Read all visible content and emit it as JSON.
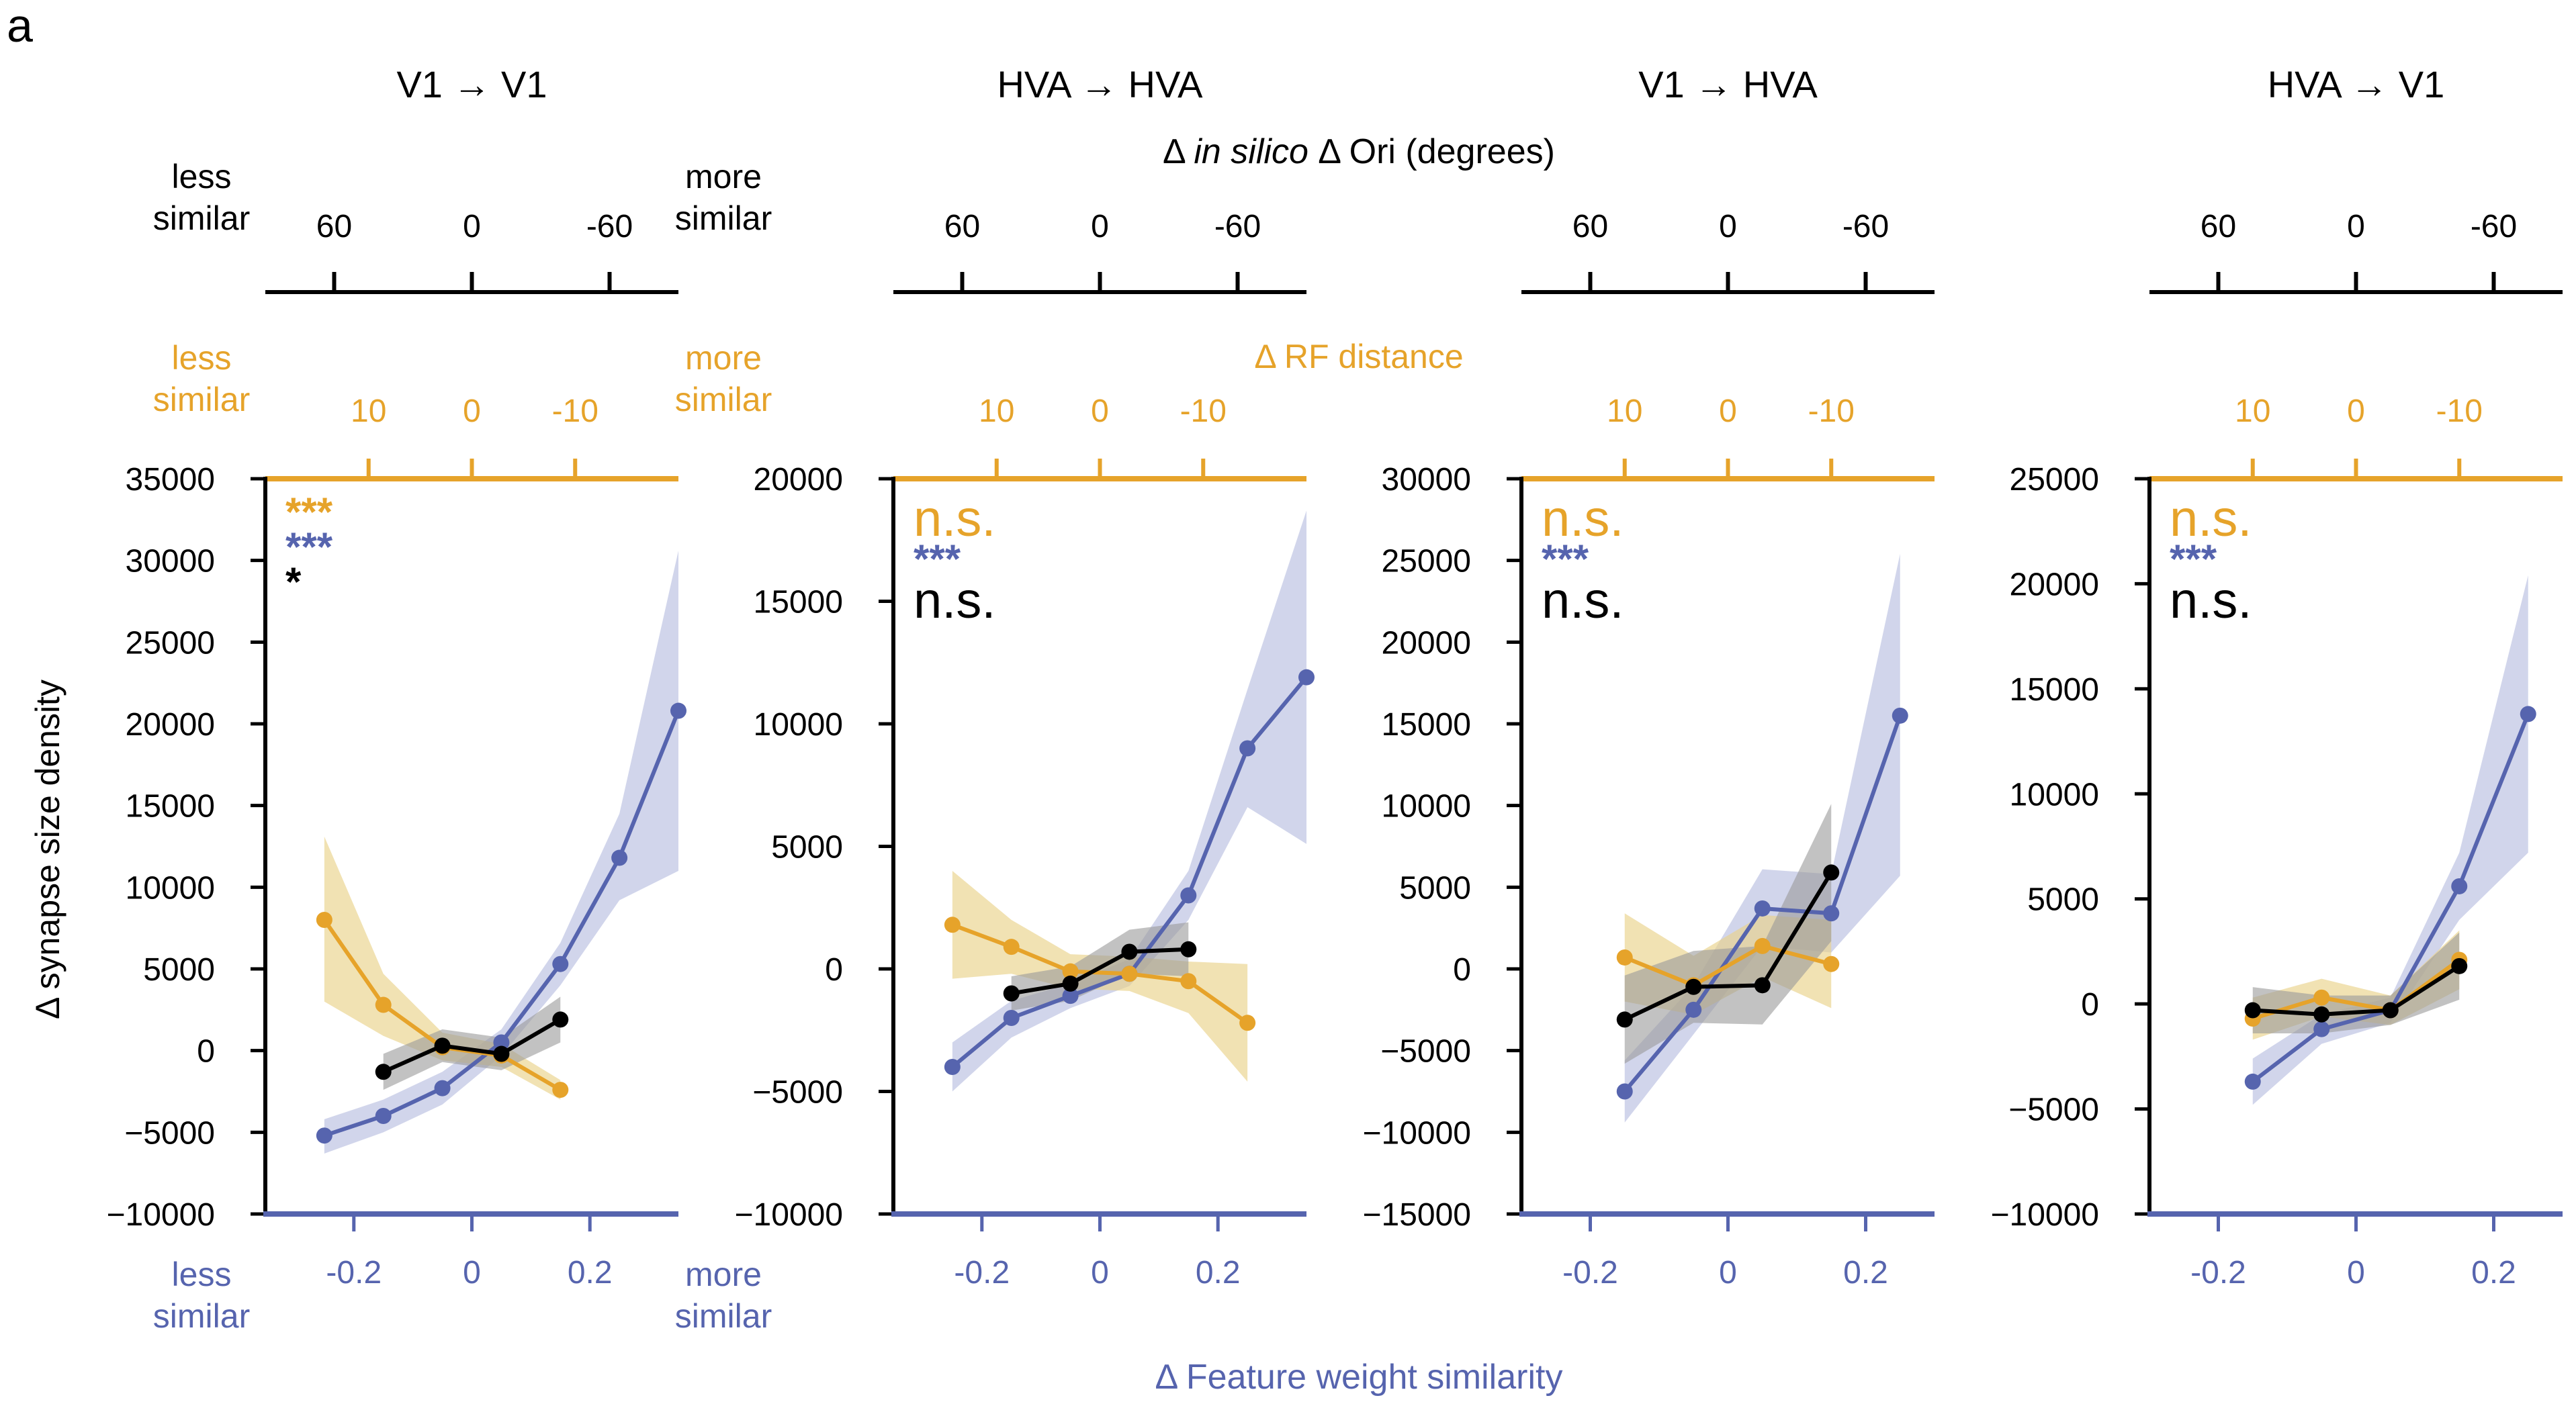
{
  "panel_letter": "a",
  "labels": {
    "top_axis": "Δ in silico Δ Ori (degrees)",
    "top_axis_prefix": "Δ ",
    "top_axis_italic": "in silico",
    "top_axis_suffix": " Δ Ori (degrees)",
    "middle_axis": "Δ RF distance",
    "bottom_axis": "Δ Feature weight similarity",
    "y_axis": "Δ synapse size density",
    "less_similar": [
      "less",
      "similar"
    ],
    "more_similar": [
      "more",
      "similar"
    ]
  },
  "colors": {
    "orange": "#E6A32A",
    "blue": "#5664AE",
    "black": "#000000",
    "orange_band": "#E9D38A",
    "blue_band": "#B9BEE0",
    "gray_band": "#9A9A9A"
  },
  "chart_data": [
    {
      "type": "line",
      "title": "V1 → V1",
      "ylim": [
        -10000,
        35000
      ],
      "yticks": [
        35000,
        30000,
        25000,
        20000,
        15000,
        10000,
        5000,
        0,
        -5000,
        -10000
      ],
      "ytick_labels": [
        "35000",
        "30000",
        "25000",
        "20000",
        "15000",
        "10000",
        "5000",
        "0",
        "−5000",
        "−10000"
      ],
      "xlim": [
        -0.35,
        0.35
      ],
      "xticks": [
        -0.2,
        0,
        0.2
      ],
      "xtick_labels": [
        "-0.2",
        "0",
        "0.2"
      ],
      "ori_ticks": [
        60,
        0,
        -60
      ],
      "ori_tick_labels": [
        "60",
        "0",
        "-60"
      ],
      "ori_lim": [
        -90,
        90
      ],
      "rf_ticks": [
        10,
        0,
        -10
      ],
      "rf_tick_labels": [
        "10",
        "0",
        "-10"
      ],
      "rf_lim": [
        -20,
        20
      ],
      "significance": [
        {
          "series": "Feature weight similarity",
          "label": "***",
          "color": "blue"
        },
        {
          "series": "In silico Δ Ori",
          "label": "*",
          "color": "black"
        },
        {
          "series": "RF distance",
          "label": "***",
          "color": "orange"
        }
      ],
      "series": [
        {
          "name": "Feature weight similarity",
          "color": "blue",
          "x": [
            -0.25,
            -0.15,
            -0.05,
            0.05,
            0.15,
            0.25,
            0.35
          ],
          "y": [
            -5200,
            -4000,
            -2300,
            500,
            5300,
            11800,
            20800
          ],
          "lo": [
            -6300,
            -5000,
            -3300,
            -300,
            4000,
            9200,
            11000
          ],
          "hi": [
            -4200,
            -3000,
            -1300,
            1300,
            6600,
            14500,
            30600
          ]
        },
        {
          "name": "RF distance",
          "color": "orange",
          "x": [
            -0.25,
            -0.15,
            -0.05,
            0.05,
            0.15
          ],
          "y": [
            8000,
            2800,
            200,
            -300,
            -2400
          ],
          "lo": [
            3000,
            900,
            -600,
            -1000,
            -3000
          ],
          "hi": [
            13100,
            4700,
            1100,
            400,
            -1800
          ]
        },
        {
          "name": "In silico Δ Ori",
          "color": "black",
          "x": [
            -0.15,
            -0.05,
            0.05,
            0.15
          ],
          "y": [
            -1300,
            300,
            -200,
            1900
          ],
          "lo": [
            -2400,
            -700,
            -1200,
            500
          ],
          "hi": [
            -200,
            1300,
            800,
            3300
          ]
        }
      ]
    },
    {
      "type": "line",
      "title": "HVA → HVA",
      "ylim": [
        -10000,
        20000
      ],
      "yticks": [
        20000,
        15000,
        10000,
        5000,
        0,
        -5000,
        -10000
      ],
      "ytick_labels": [
        "20000",
        "15000",
        "10000",
        "5000",
        "0",
        "−5000",
        "−10000"
      ],
      "xlim": [
        -0.35,
        0.35
      ],
      "xticks": [
        -0.2,
        0,
        0.2
      ],
      "xtick_labels": [
        "-0.2",
        "0",
        "0.2"
      ],
      "ori_ticks": [
        60,
        0,
        -60
      ],
      "ori_tick_labels": [
        "60",
        "0",
        "-60"
      ],
      "ori_lim": [
        -90,
        90
      ],
      "rf_ticks": [
        10,
        0,
        -10
      ],
      "rf_tick_labels": [
        "10",
        "0",
        "-10"
      ],
      "rf_lim": [
        -20,
        20
      ],
      "significance": [
        {
          "series": "Feature weight similarity",
          "label": "***",
          "color": "blue"
        },
        {
          "series": "In silico Δ Ori",
          "label": "n.s.",
          "color": "black"
        },
        {
          "series": "RF distance",
          "label": "n.s.",
          "color": "orange"
        }
      ],
      "series": [
        {
          "name": "Feature weight similarity",
          "color": "blue",
          "x": [
            -0.25,
            -0.15,
            -0.05,
            0.05,
            0.15,
            0.25,
            0.35
          ],
          "y": [
            -4000,
            -2000,
            -1100,
            -200,
            3000,
            9000,
            11900
          ],
          "lo": [
            -5000,
            -2800,
            -1600,
            -700,
            2000,
            6600,
            5100
          ],
          "hi": [
            -3000,
            -1300,
            -600,
            400,
            4000,
            11400,
            18700
          ]
        },
        {
          "name": "RF distance",
          "color": "orange",
          "x": [
            -0.25,
            -0.15,
            -0.05,
            0.05,
            0.15,
            0.25
          ],
          "y": [
            1800,
            900,
            -100,
            -200,
            -500,
            -2200
          ],
          "lo": [
            -400,
            -200,
            -800,
            -900,
            -1800,
            -4600
          ],
          "hi": [
            4000,
            2000,
            600,
            500,
            300,
            200
          ]
        },
        {
          "name": "In silico Δ Ori",
          "color": "black",
          "x": [
            -0.15,
            -0.05,
            0.05,
            0.15
          ],
          "y": [
            -1000,
            -600,
            700,
            800
          ],
          "lo": [
            -1700,
            -1300,
            -200,
            -300
          ],
          "hi": [
            -300,
            100,
            1600,
            1900
          ]
        }
      ]
    },
    {
      "type": "line",
      "title": "V1 → HVA",
      "ylim": [
        -15000,
        30000
      ],
      "yticks": [
        30000,
        25000,
        20000,
        15000,
        10000,
        5000,
        0,
        -5000,
        -10000,
        -15000
      ],
      "ytick_labels": [
        "30000",
        "25000",
        "20000",
        "15000",
        "10000",
        "5000",
        "0",
        "−5000",
        "−10000",
        "−15000"
      ],
      "xlim": [
        -0.3,
        0.3
      ],
      "xticks": [
        -0.2,
        0,
        0.2
      ],
      "xtick_labels": [
        "-0.2",
        "0",
        "0.2"
      ],
      "ori_ticks": [
        60,
        0,
        -60
      ],
      "ori_tick_labels": [
        "60",
        "0",
        "-60"
      ],
      "ori_lim": [
        -90,
        90
      ],
      "rf_ticks": [
        10,
        0,
        -10
      ],
      "rf_tick_labels": [
        "10",
        "0",
        "-10"
      ],
      "rf_lim": [
        -20,
        20
      ],
      "significance": [
        {
          "series": "Feature weight similarity",
          "label": "***",
          "color": "blue"
        },
        {
          "series": "In silico Δ Ori",
          "label": "n.s.",
          "color": "black"
        },
        {
          "series": "RF distance",
          "label": "n.s.",
          "color": "orange"
        }
      ],
      "series": [
        {
          "name": "Feature weight similarity",
          "color": "blue",
          "x": [
            -0.15,
            -0.05,
            0.05,
            0.15,
            0.25
          ],
          "y": [
            -7500,
            -2500,
            3700,
            3400,
            15500
          ],
          "lo": [
            -9400,
            -4000,
            1400,
            1000,
            5700
          ],
          "hi": [
            -5600,
            -1000,
            6100,
            5800,
            25400
          ]
        },
        {
          "name": "RF distance",
          "color": "orange",
          "x": [
            -0.15,
            -0.05,
            0.05,
            0.15
          ],
          "y": [
            700,
            -1000,
            1400,
            300
          ],
          "lo": [
            -2000,
            -2800,
            -500,
            -2400
          ],
          "hi": [
            3400,
            800,
            3300,
            3000
          ]
        },
        {
          "name": "In silico Δ Ori",
          "color": "black",
          "x": [
            -0.15,
            -0.05,
            0.05,
            0.15
          ],
          "y": [
            -3100,
            -1100,
            -1000,
            5900
          ],
          "lo": [
            -5800,
            -3300,
            -3400,
            1700
          ],
          "hi": [
            -400,
            1100,
            1400,
            10100
          ]
        }
      ]
    },
    {
      "type": "line",
      "title": "HVA → V1",
      "ylim": [
        -10000,
        25000
      ],
      "yticks": [
        25000,
        20000,
        15000,
        10000,
        5000,
        0,
        -5000,
        -10000
      ],
      "ytick_labels": [
        "25000",
        "20000",
        "15000",
        "10000",
        "5000",
        "0",
        "−5000",
        "−10000"
      ],
      "xlim": [
        -0.3,
        0.3
      ],
      "xticks": [
        -0.2,
        0,
        0.2
      ],
      "xtick_labels": [
        "-0.2",
        "0",
        "0.2"
      ],
      "ori_ticks": [
        60,
        0,
        -60
      ],
      "ori_tick_labels": [
        "60",
        "0",
        "-60"
      ],
      "ori_lim": [
        -90,
        90
      ],
      "rf_ticks": [
        10,
        0,
        -10
      ],
      "rf_tick_labels": [
        "10",
        "0",
        "-10"
      ],
      "rf_lim": [
        -20,
        20
      ],
      "significance": [
        {
          "series": "Feature weight similarity",
          "label": "***",
          "color": "blue"
        },
        {
          "series": "In silico Δ Ori",
          "label": "n.s.",
          "color": "black"
        },
        {
          "series": "RF distance",
          "label": "n.s.",
          "color": "orange"
        }
      ],
      "series": [
        {
          "name": "Feature weight similarity",
          "color": "blue",
          "x": [
            -0.15,
            -0.05,
            0.05,
            0.15,
            0.25
          ],
          "y": [
            -3700,
            -1200,
            -300,
            5600,
            13800
          ],
          "lo": [
            -4800,
            -1900,
            -900,
            4000,
            7200
          ],
          "hi": [
            -2600,
            -500,
            300,
            7200,
            20400
          ]
        },
        {
          "name": "RF distance",
          "color": "orange",
          "x": [
            -0.15,
            -0.05,
            0.05,
            0.15
          ],
          "y": [
            -700,
            300,
            -300,
            2100
          ],
          "lo": [
            -1700,
            -600,
            -1000,
            700
          ],
          "hi": [
            300,
            1200,
            400,
            3500
          ]
        },
        {
          "name": "In silico Δ Ori",
          "color": "black",
          "x": [
            -0.15,
            -0.05,
            0.05,
            0.15
          ],
          "y": [
            -300,
            -500,
            -300,
            1800
          ],
          "lo": [
            -1400,
            -1400,
            -1000,
            200
          ],
          "hi": [
            800,
            400,
            400,
            3400
          ]
        }
      ]
    }
  ]
}
